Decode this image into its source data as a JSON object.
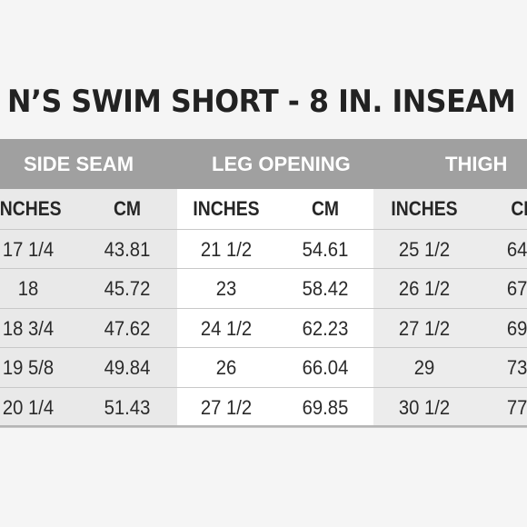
{
  "title": "N’S SWIM SHORT - 8 IN. INSEAM",
  "groups": [
    {
      "label": "SIDE SEAM"
    },
    {
      "label": "LEG OPENING"
    },
    {
      "label": "THIGH"
    }
  ],
  "subheaders": [
    "INCHES",
    "CM",
    "INCHES",
    "CM",
    "INCHES",
    "CI"
  ],
  "rows": [
    [
      "17 1/4",
      "43.81",
      "21 1/2",
      "54.61",
      "25 1/2",
      "64."
    ],
    [
      "18",
      "45.72",
      "23",
      "58.42",
      "26 1/2",
      "67."
    ],
    [
      "18 3/4",
      "47.62",
      "24 1/2",
      "62.23",
      "27 1/2",
      "69."
    ],
    [
      "19 5/8",
      "49.84",
      "26",
      "66.04",
      "29",
      "73."
    ],
    [
      "20 1/4",
      "51.43",
      "27 1/2",
      "69.85",
      "30 1/2",
      "77."
    ]
  ],
  "colors": {
    "header_band": "#a0a0a0",
    "group_shade_1": "#e9e9e9",
    "group_shade_2": "#ffffff",
    "group_shade_3": "#ececec"
  }
}
